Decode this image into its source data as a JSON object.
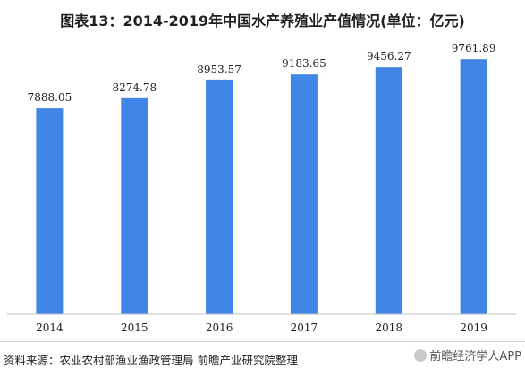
{
  "chart_data": {
    "type": "bar",
    "title": "图表13：2014-2019年中国水产养殖业产值情况(单位：亿元)",
    "categories": [
      "2014",
      "2015",
      "2016",
      "2017",
      "2018",
      "2019"
    ],
    "values": [
      7888.05,
      8274.78,
      8953.57,
      9183.65,
      9456.27,
      9761.89
    ],
    "value_labels": [
      "7888.05",
      "8274.78",
      "8953.57",
      "9183.65",
      "9456.27",
      "9761.89"
    ],
    "xlabel": "",
    "ylabel": "",
    "ylim": [
      0,
      11000
    ],
    "bar_color": "#3f86e6",
    "grid": false,
    "legend": "none"
  },
  "footer": {
    "source": "资料来源：农业农村部渔业渔政管理局 前瞻产业研究院整理",
    "brand": "前瞻经济学人APP"
  }
}
